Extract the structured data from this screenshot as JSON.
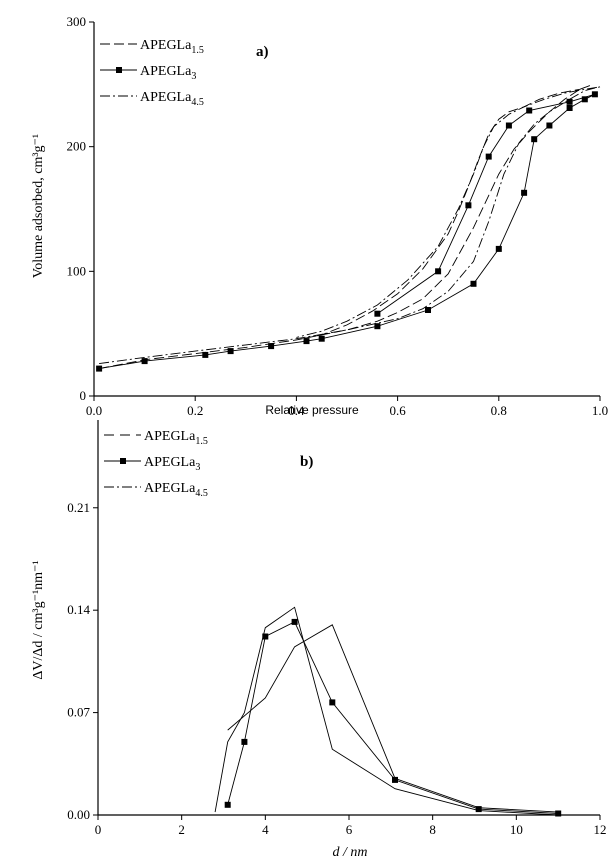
{
  "chart_data": [
    {
      "panel": "a)",
      "type": "line",
      "xlabel": "Relative pressure",
      "ylabel": "Volume adsorbed, cm³g⁻¹",
      "xlim": [
        0,
        1.0
      ],
      "ylim": [
        0,
        300
      ],
      "xticks": [
        "0.0",
        "0.2",
        "0.4",
        "0.6",
        "0.8",
        "1.0"
      ],
      "yticks": [
        "0",
        "100",
        "200",
        "300"
      ],
      "legend_position": "top-left",
      "series": [
        {
          "name": "APEGLa1.5",
          "marker": "none",
          "dash": "long-dash",
          "x": [
            0.01,
            0.1,
            0.2,
            0.3,
            0.4,
            0.5,
            0.56,
            0.6,
            0.65,
            0.7,
            0.75,
            0.8,
            0.83,
            0.86,
            0.88,
            0.9,
            0.93,
            0.96,
            0.98,
            0.96,
            0.92,
            0.88,
            0.85,
            0.82,
            0.8,
            0.78,
            0.76,
            0.74,
            0.72,
            0.7,
            0.65,
            0.6,
            0.55,
            0.5,
            0.45,
            0.4
          ],
          "y": [
            22,
            29,
            34,
            39,
            45,
            53,
            60,
            67,
            78,
            98,
            135,
            178,
            198,
            212,
            220,
            228,
            238,
            246,
            249,
            246,
            243,
            238,
            232,
            228,
            222,
            210,
            190,
            168,
            148,
            130,
            102,
            82,
            68,
            57,
            49,
            45
          ]
        },
        {
          "name": "APEGLa3",
          "marker": "square",
          "dash": "solid",
          "x": [
            0.01,
            0.1,
            0.22,
            0.27,
            0.35,
            0.42,
            0.45,
            0.56,
            0.66,
            0.75,
            0.8,
            0.85,
            0.87,
            0.9,
            0.94,
            0.97,
            0.99,
            0.94,
            0.86,
            0.82,
            0.78,
            0.74,
            0.68,
            0.56
          ],
          "y": [
            22,
            28,
            33,
            36,
            40,
            44,
            46,
            56,
            69,
            90,
            118,
            163,
            206,
            217,
            231,
            238,
            242,
            236,
            229,
            217,
            192,
            153,
            100,
            66
          ],
          "x_open_markers": [],
          "x_filled_markers_only": true
        },
        {
          "name": "APEGLa4.5",
          "marker": "none",
          "dash": "dash-dot",
          "x": [
            0.01,
            0.1,
            0.2,
            0.3,
            0.4,
            0.5,
            0.6,
            0.65,
            0.7,
            0.75,
            0.78,
            0.81,
            0.84,
            0.87,
            0.9,
            0.94,
            0.97,
            1.0,
            0.97,
            0.93,
            0.89,
            0.85,
            0.82,
            0.79,
            0.77,
            0.75,
            0.72,
            0.68,
            0.62,
            0.56,
            0.5,
            0.45,
            0.4
          ],
          "y": [
            26,
            31,
            36,
            41,
            46,
            53,
            62,
            70,
            84,
            108,
            140,
            178,
            203,
            218,
            228,
            238,
            245,
            248,
            246,
            243,
            238,
            232,
            226,
            216,
            200,
            178,
            150,
            120,
            93,
            73,
            60,
            52,
            47
          ]
        }
      ]
    },
    {
      "panel": "b)",
      "type": "line",
      "xlabel": "d / nm",
      "ylabel": "ΔV/Δd / cm³g⁻¹nm⁻¹",
      "xlim": [
        0,
        12
      ],
      "ylim": [
        0,
        0.27
      ],
      "xticks": [
        "0",
        "2",
        "4",
        "6",
        "8",
        "10",
        "12"
      ],
      "yticks": [
        "0.00",
        "0.07",
        "0.14",
        "0.21"
      ],
      "legend_position": "top-left",
      "series": [
        {
          "name": "APEGLa1.5",
          "marker": "none",
          "dash": "solid",
          "x": [
            3.1,
            4.0,
            4.7,
            5.6,
            7.1,
            9.1,
            11.0
          ],
          "y": [
            0.058,
            0.08,
            0.115,
            0.13,
            0.025,
            0.005,
            0.002
          ]
        },
        {
          "name": "APEGLa3",
          "marker": "square",
          "dash": "solid",
          "x": [
            3.1,
            3.5,
            4.0,
            4.7,
            5.6,
            7.1,
            9.1,
            11.0
          ],
          "y": [
            0.007,
            0.05,
            0.122,
            0.132,
            0.077,
            0.024,
            0.004,
            0.001
          ]
        },
        {
          "name": "APEGLa4.5",
          "marker": "none",
          "dash": "solid",
          "x": [
            2.8,
            3.1,
            3.5,
            4.0,
            4.7,
            5.6,
            7.1,
            9.1,
            11.0
          ],
          "y": [
            0.002,
            0.05,
            0.07,
            0.128,
            0.142,
            0.045,
            0.018,
            0.003,
            0.0
          ]
        }
      ]
    }
  ]
}
